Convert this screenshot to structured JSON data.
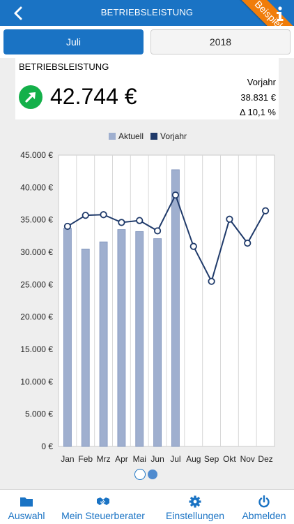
{
  "header": {
    "title": "BETRIEBSLEISTUNG",
    "ribbon": "Beispieldaten",
    "back_icon": "chevron-left-icon",
    "info_icon": "info-icon"
  },
  "tabs": [
    {
      "label": "Juli",
      "active": true
    },
    {
      "label": "2018",
      "active": false
    }
  ],
  "summary": {
    "title": "BETRIEBSLEISTUNG",
    "value": "42.744 €",
    "trend_icon": "arrow-up-right-icon",
    "previous_label": "Vorjahr",
    "previous_value": "38.831 €",
    "delta": "Δ 10,1 %"
  },
  "colors": {
    "brand": "#1a73c4",
    "ribbon": "#f07d0a",
    "up": "#14b04a",
    "bar": "#9fafcf",
    "line": "#1f3a6a"
  },
  "chart_data": {
    "type": "bar",
    "categories": [
      "Jan",
      "Feb",
      "Mrz",
      "Apr",
      "Mai",
      "Jun",
      "Jul",
      "Aug",
      "Sep",
      "Okt",
      "Nov",
      "Dez"
    ],
    "series": [
      {
        "name": "Aktuell",
        "type": "bar",
        "values": [
          33700,
          30500,
          31600,
          33500,
          33200,
          32100,
          42744,
          null,
          null,
          null,
          null,
          null
        ]
      },
      {
        "name": "Vorjahr",
        "type": "line",
        "values": [
          34000,
          35700,
          35800,
          34600,
          34900,
          33300,
          38831,
          30900,
          25500,
          35100,
          31400,
          36400
        ]
      }
    ],
    "ylim": [
      0,
      45000
    ],
    "yticks": [
      "0 €",
      "5.000 €",
      "10.000 €",
      "15.000 €",
      "20.000 €",
      "25.000 €",
      "30.000 €",
      "35.000 €",
      "40.000 €",
      "45.000 €"
    ],
    "legend_position": "top",
    "grid": true
  },
  "pager": {
    "pages": 2,
    "current": 2
  },
  "bottom_nav": [
    {
      "label": "Auswahl",
      "icon": "folder-icon"
    },
    {
      "label": "Mein Steuerberater",
      "icon": "handshake-icon"
    },
    {
      "label": "Einstellungen",
      "icon": "gear-icon"
    },
    {
      "label": "Abmelden",
      "icon": "power-icon"
    }
  ]
}
